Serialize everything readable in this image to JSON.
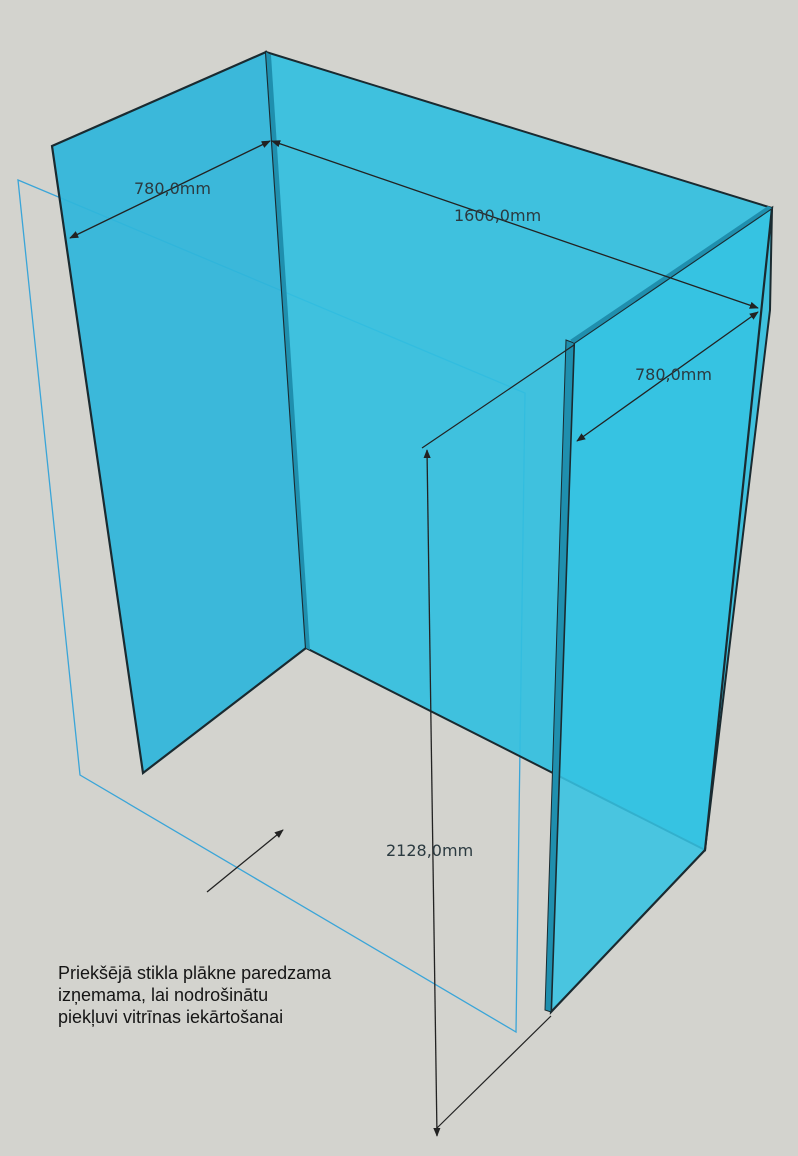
{
  "diagram": {
    "dimensions": {
      "left_depth": "780,0mm",
      "back_width": "1600,0mm",
      "right_depth": "780,0mm",
      "height": "2128,0mm"
    },
    "note": {
      "line1": "Priekšējā stikla plākne paredzama",
      "line2": "izņemama, lai nodrošinātu",
      "line3": "piekļuvi vitrīnas iekārtošanai"
    },
    "colors": {
      "background": "#d3d3ce",
      "glass": "#32bfe0",
      "glass_edge": "#1a2a30",
      "front_panel_outline": "#3aa5d8",
      "dimension_line": "#2b2b2b"
    }
  }
}
